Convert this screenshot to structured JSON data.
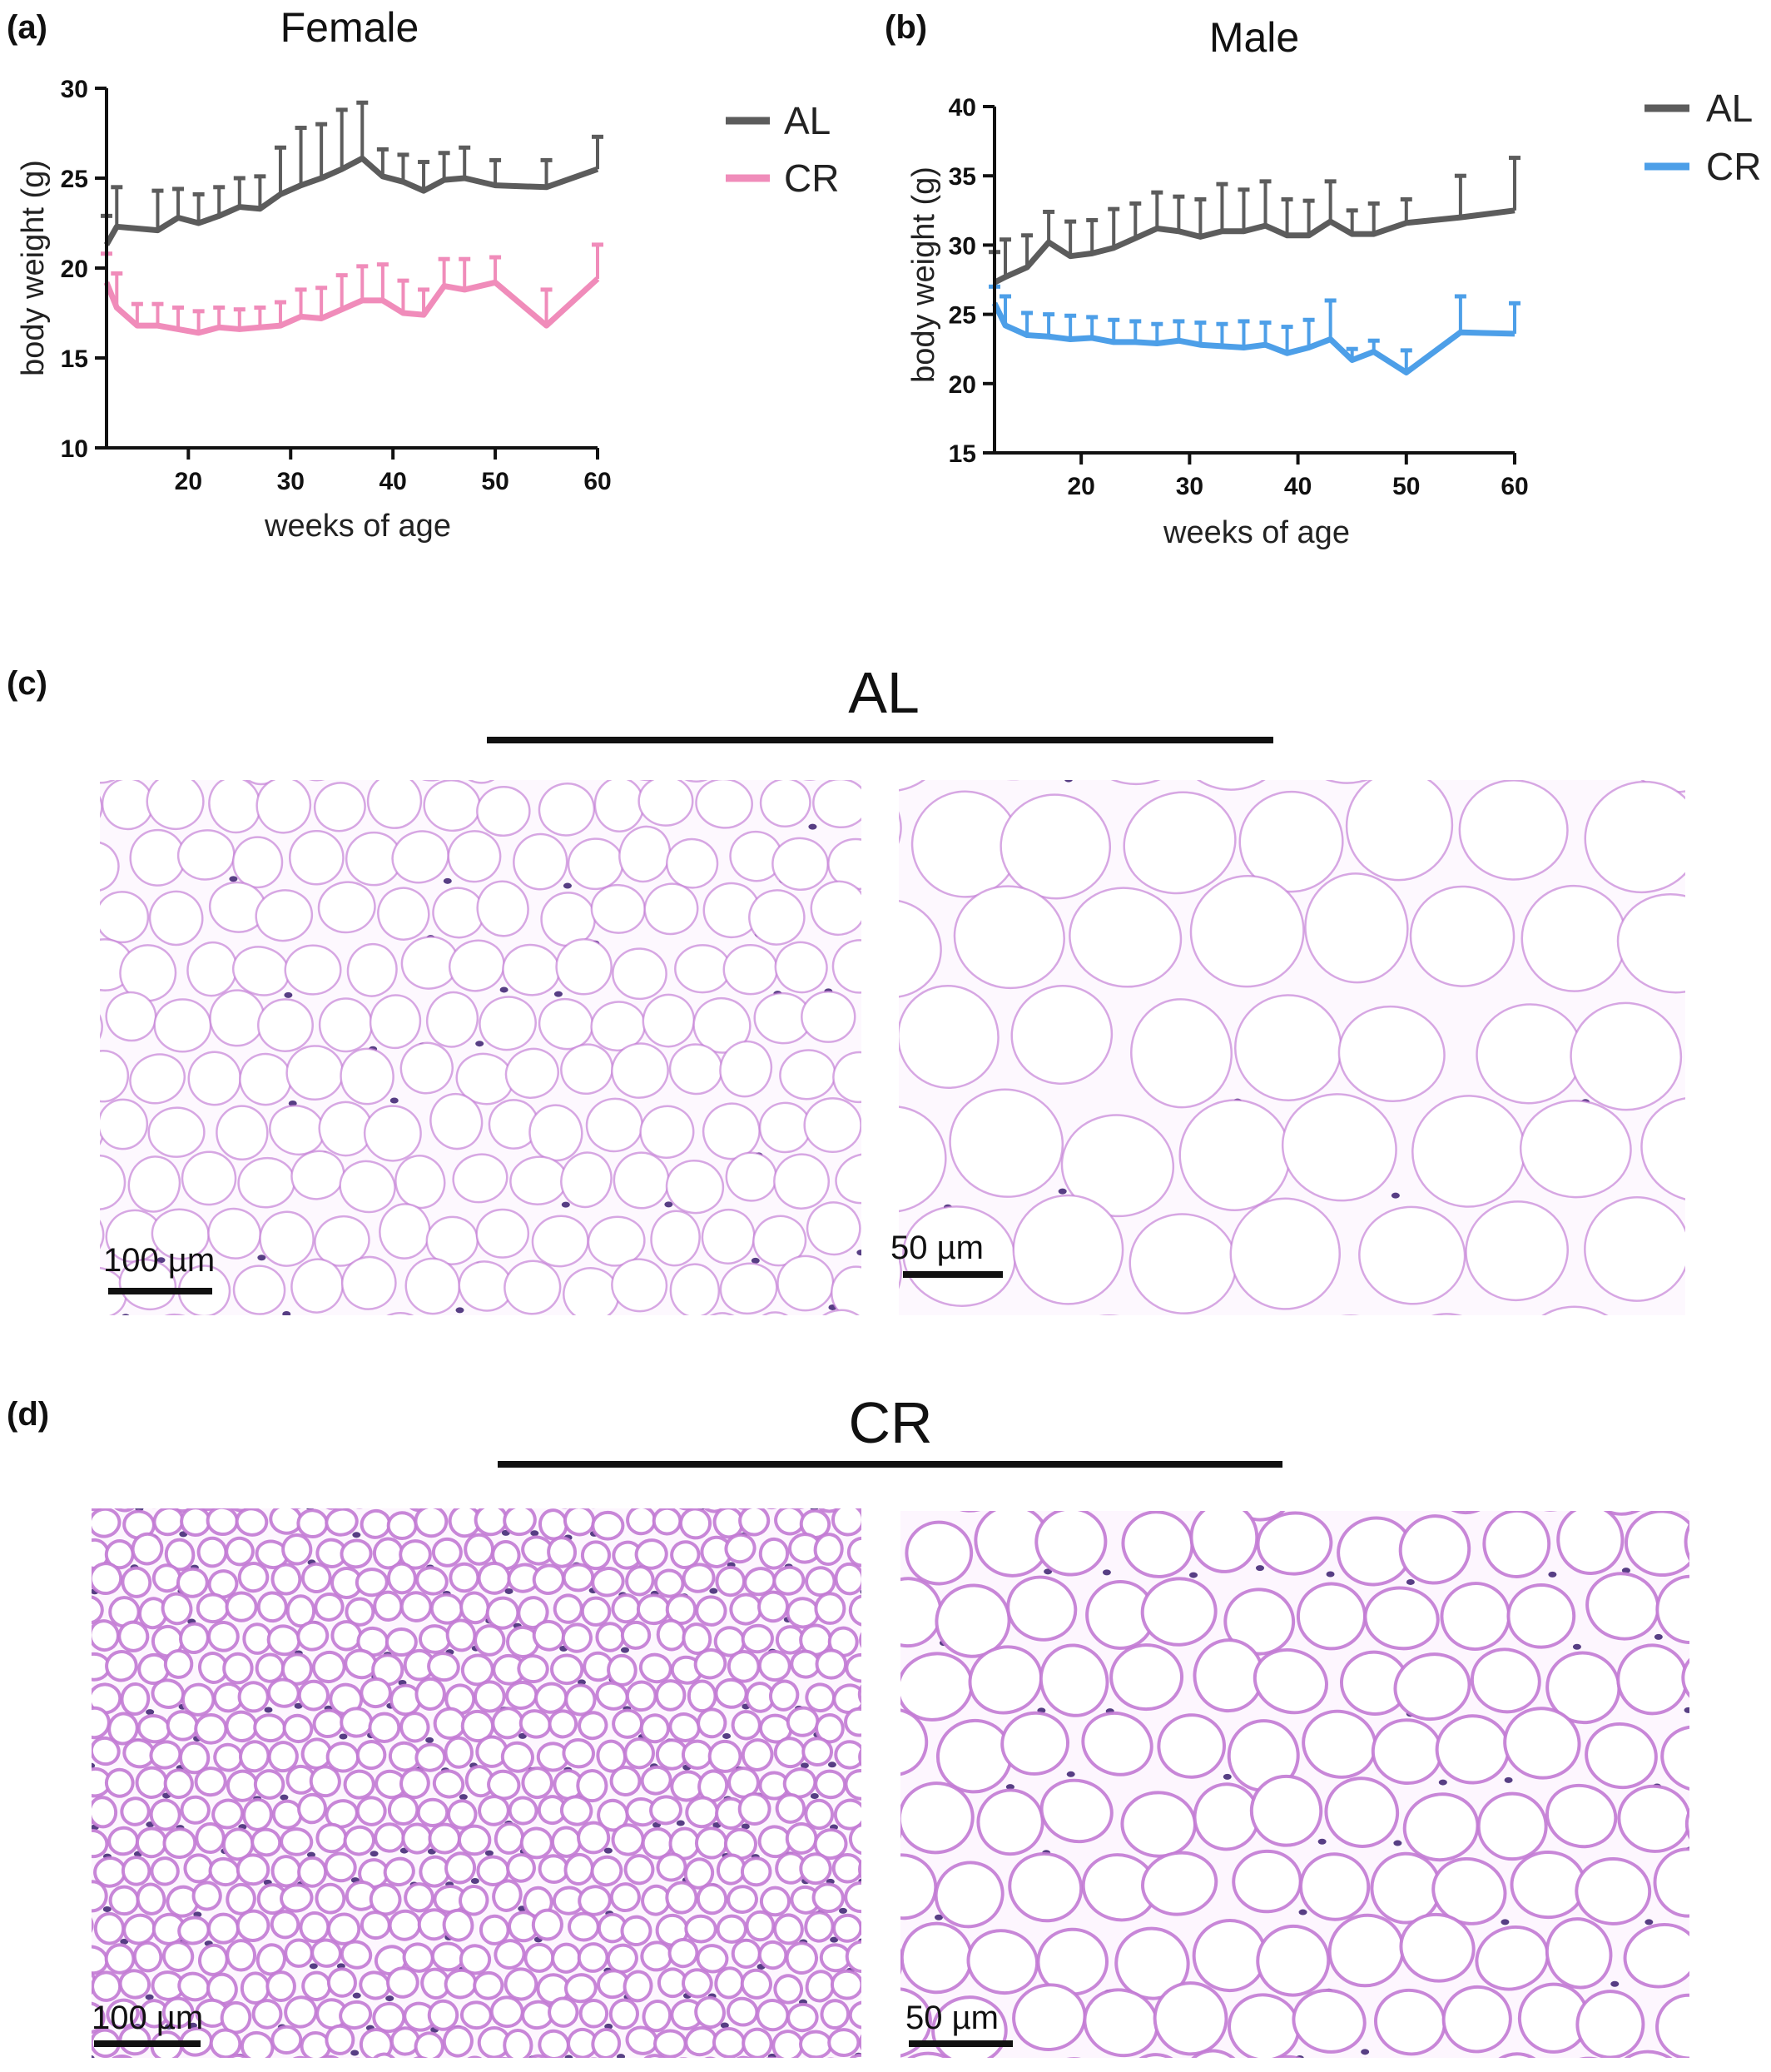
{
  "chart_data": [
    {
      "type": "line",
      "panel": "(a)",
      "title": "Female",
      "xlabel": "weeks of age",
      "ylabel": "body weight (g)",
      "xlim": [
        12,
        60
      ],
      "ylim": [
        10,
        30
      ],
      "xticks": [
        20,
        30,
        40,
        50,
        60
      ],
      "yticks": [
        10,
        15,
        20,
        25,
        30
      ],
      "legend": "top-right",
      "series": [
        {
          "name": "AL",
          "color": "#5c5c5c",
          "x": [
            12,
            13,
            17,
            19,
            21,
            23,
            25,
            27,
            29,
            31,
            33,
            35,
            37,
            39,
            41,
            43,
            45,
            47,
            50,
            55,
            60
          ],
          "y": [
            21.3,
            22.3,
            22.1,
            22.8,
            22.5,
            22.9,
            23.4,
            23.3,
            24.1,
            24.6,
            25.0,
            25.5,
            26.1,
            25.1,
            24.8,
            24.3,
            24.9,
            25.0,
            24.6,
            24.5,
            25.5
          ],
          "err": [
            1.6,
            2.2,
            2.2,
            1.6,
            1.6,
            1.6,
            1.6,
            1.8,
            2.6,
            3.2,
            3.0,
            3.3,
            3.1,
            1.5,
            1.5,
            1.6,
            1.5,
            1.7,
            1.4,
            1.5,
            1.8
          ]
        },
        {
          "name": "CR",
          "color": "#f08cba",
          "x": [
            12,
            13,
            15,
            17,
            19,
            21,
            23,
            25,
            27,
            29,
            31,
            33,
            35,
            37,
            39,
            41,
            43,
            45,
            47,
            50,
            55,
            60
          ],
          "y": [
            19.2,
            17.8,
            16.8,
            16.8,
            16.6,
            16.4,
            16.7,
            16.6,
            16.7,
            16.8,
            17.3,
            17.2,
            17.7,
            18.2,
            18.2,
            17.5,
            17.4,
            19.0,
            18.8,
            19.2,
            16.8,
            19.4
          ],
          "err": [
            1.6,
            1.9,
            1.2,
            1.2,
            1.2,
            1.2,
            1.1,
            1.1,
            1.1,
            1.3,
            1.5,
            1.7,
            1.9,
            1.9,
            2.0,
            1.8,
            1.4,
            1.5,
            1.7,
            1.4,
            2.0,
            1.9
          ]
        }
      ]
    },
    {
      "type": "line",
      "panel": "(b)",
      "title": "Male",
      "xlabel": "weeks of age",
      "ylabel": "body weight (g)",
      "xlim": [
        12,
        60
      ],
      "ylim": [
        15,
        40
      ],
      "xticks": [
        20,
        30,
        40,
        50,
        60
      ],
      "yticks": [
        15,
        20,
        25,
        30,
        35,
        40
      ],
      "legend": "top-right",
      "series": [
        {
          "name": "AL",
          "color": "#5c5c5c",
          "x": [
            12,
            13,
            15,
            17,
            19,
            21,
            23,
            25,
            27,
            29,
            31,
            33,
            35,
            37,
            39,
            41,
            43,
            45,
            47,
            50,
            55,
            60
          ],
          "y": [
            27.3,
            27.7,
            28.4,
            30.2,
            29.2,
            29.4,
            29.8,
            30.5,
            31.2,
            31.0,
            30.6,
            31.0,
            31.0,
            31.4,
            30.7,
            30.7,
            31.7,
            30.8,
            30.8,
            31.6,
            32.0,
            32.5
          ],
          "err": [
            2.2,
            2.7,
            2.3,
            2.2,
            2.5,
            2.4,
            2.8,
            2.5,
            2.6,
            2.5,
            2.7,
            3.4,
            3.0,
            3.2,
            2.6,
            2.5,
            2.9,
            1.7,
            2.2,
            1.7,
            3.0,
            3.8
          ]
        },
        {
          "name": "CR",
          "color": "#4d9fe8",
          "x": [
            12,
            13,
            15,
            17,
            19,
            21,
            23,
            25,
            27,
            29,
            31,
            33,
            35,
            37,
            39,
            41,
            43,
            45,
            47,
            50,
            55,
            60
          ],
          "y": [
            25.8,
            24.2,
            23.5,
            23.4,
            23.2,
            23.3,
            23.0,
            23.0,
            22.9,
            23.1,
            22.8,
            22.7,
            22.6,
            22.8,
            22.2,
            22.6,
            23.2,
            21.7,
            22.3,
            20.8,
            23.7,
            23.6
          ],
          "err": [
            1.2,
            2.1,
            1.6,
            1.6,
            1.7,
            1.5,
            1.6,
            1.5,
            1.4,
            1.4,
            1.6,
            1.6,
            1.9,
            1.6,
            1.9,
            2.0,
            2.8,
            0.8,
            0.8,
            1.6,
            2.6,
            2.2
          ]
        }
      ]
    }
  ],
  "histology": {
    "panel_c_letter": "(c)",
    "panel_c_title": "AL",
    "panel_d_letter": "(d)",
    "panel_d_title": "CR",
    "scale_low": "100 µm",
    "scale_high": "50 µm",
    "tissue_color": "#c27ad4",
    "nucleus_color": "#3a1d6e",
    "al_cr_cells": "large cells (AL) vs small cells (CR)"
  }
}
